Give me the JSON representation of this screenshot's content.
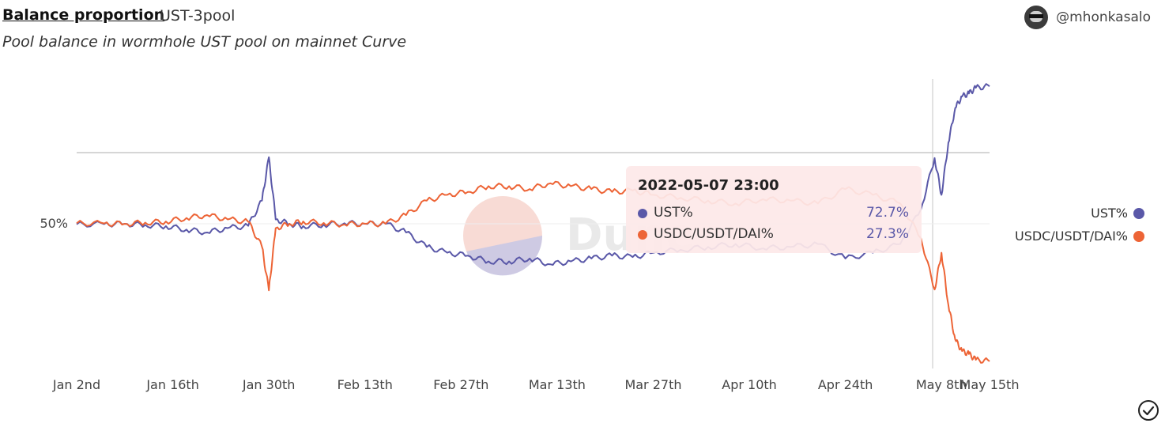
{
  "header": {
    "title": "Balance proportion",
    "query_name": "UST-3pool",
    "description": "Pool balance in wormhole UST pool on mainnet Curve",
    "author": "@mhonkasalo"
  },
  "watermark": "Dune",
  "tooltip": {
    "date": "2022-05-07 23:00",
    "rows": [
      {
        "name": "UST%",
        "value": "72.7%"
      },
      {
        "name": "USDC/USDT/DAI%",
        "value": "27.3%"
      }
    ]
  },
  "icons": {
    "avatar": "user-avatar-icon",
    "check": "check-circle-icon",
    "colors": {
      "ust": "#5a58a8",
      "usdc": "#ed6436"
    }
  },
  "chart_data": {
    "type": "line",
    "title": "Balance proportion",
    "x_tick_labels": [
      "Jan 2nd",
      "Jan 16th",
      "Jan 30th",
      "Feb 13th",
      "Feb 27th",
      "Mar 13th",
      "Mar 27th",
      "Apr 10th",
      "Apr 24th",
      "May 8th",
      "May 15th"
    ],
    "x_tick_dates": [
      "2022-01-02",
      "2022-01-16",
      "2022-01-30",
      "2022-02-13",
      "2022-02-27",
      "2022-03-13",
      "2022-03-27",
      "2022-04-10",
      "2022-04-24",
      "2022-05-08",
      "2022-05-15"
    ],
    "y_tick_labels": [
      "50%"
    ],
    "y_tick_values": [
      0.5
    ],
    "ylim": [
      0,
      1
    ],
    "grid": "horizontal reference line only",
    "legend": "right",
    "series": [
      {
        "name": "UST%",
        "color": "#5a58a8",
        "x": [
          "2022-01-02",
          "2022-01-06",
          "2022-01-09",
          "2022-01-12",
          "2022-01-15",
          "2022-01-18",
          "2022-01-21",
          "2022-01-24",
          "2022-01-27",
          "2022-01-29",
          "2022-01-30",
          "2022-01-31",
          "2022-02-02",
          "2022-02-04",
          "2022-02-07",
          "2022-02-10",
          "2022-02-13",
          "2022-02-16",
          "2022-02-19",
          "2022-02-22",
          "2022-02-25",
          "2022-02-28",
          "2022-03-03",
          "2022-03-06",
          "2022-03-09",
          "2022-03-12",
          "2022-03-15",
          "2022-03-18",
          "2022-03-21",
          "2022-03-24",
          "2022-03-27",
          "2022-03-31",
          "2022-04-04",
          "2022-04-08",
          "2022-04-12",
          "2022-04-16",
          "2022-04-20",
          "2022-04-24",
          "2022-04-28",
          "2022-05-02",
          "2022-05-05",
          "2022-05-07",
          "2022-05-08",
          "2022-05-09",
          "2022-05-10",
          "2022-05-11",
          "2022-05-12",
          "2022-05-13",
          "2022-05-15"
        ],
        "y": [
          0.498,
          0.499,
          0.5,
          0.496,
          0.492,
          0.48,
          0.47,
          0.485,
          0.493,
          0.58,
          0.73,
          0.515,
          0.5,
          0.492,
          0.497,
          0.502,
          0.5,
          0.5,
          0.47,
          0.42,
          0.4,
          0.39,
          0.37,
          0.37,
          0.38,
          0.36,
          0.37,
          0.38,
          0.39,
          0.385,
          0.4,
          0.41,
          0.42,
          0.43,
          0.415,
          0.42,
          0.43,
          0.38,
          0.4,
          0.43,
          0.55,
          0.727,
          0.6,
          0.78,
          0.9,
          0.94,
          0.95,
          0.97,
          0.975
        ]
      },
      {
        "name": "USDC/USDT/DAI%",
        "color": "#ed6436",
        "x": [
          "2022-01-02",
          "2022-01-06",
          "2022-01-09",
          "2022-01-12",
          "2022-01-15",
          "2022-01-18",
          "2022-01-21",
          "2022-01-24",
          "2022-01-27",
          "2022-01-29",
          "2022-01-30",
          "2022-01-31",
          "2022-02-02",
          "2022-02-04",
          "2022-02-07",
          "2022-02-10",
          "2022-02-13",
          "2022-02-16",
          "2022-02-19",
          "2022-02-22",
          "2022-02-25",
          "2022-02-28",
          "2022-03-03",
          "2022-03-06",
          "2022-03-09",
          "2022-03-12",
          "2022-03-15",
          "2022-03-18",
          "2022-03-21",
          "2022-03-24",
          "2022-03-27",
          "2022-03-31",
          "2022-04-04",
          "2022-04-08",
          "2022-04-12",
          "2022-04-16",
          "2022-04-20",
          "2022-04-24",
          "2022-04-28",
          "2022-05-02",
          "2022-05-05",
          "2022-05-07",
          "2022-05-08",
          "2022-05-09",
          "2022-05-10",
          "2022-05-11",
          "2022-05-12",
          "2022-05-13",
          "2022-05-15"
        ],
        "y": [
          0.502,
          0.501,
          0.5,
          0.504,
          0.508,
          0.52,
          0.53,
          0.515,
          0.507,
          0.42,
          0.27,
          0.485,
          0.5,
          0.508,
          0.503,
          0.498,
          0.5,
          0.5,
          0.53,
          0.58,
          0.6,
          0.61,
          0.63,
          0.63,
          0.62,
          0.64,
          0.63,
          0.62,
          0.61,
          0.615,
          0.6,
          0.59,
          0.58,
          0.57,
          0.585,
          0.58,
          0.57,
          0.62,
          0.6,
          0.57,
          0.45,
          0.273,
          0.4,
          0.22,
          0.1,
          0.06,
          0.05,
          0.03,
          0.025
        ]
      }
    ],
    "hover_date": "2022-05-07 23:00"
  }
}
